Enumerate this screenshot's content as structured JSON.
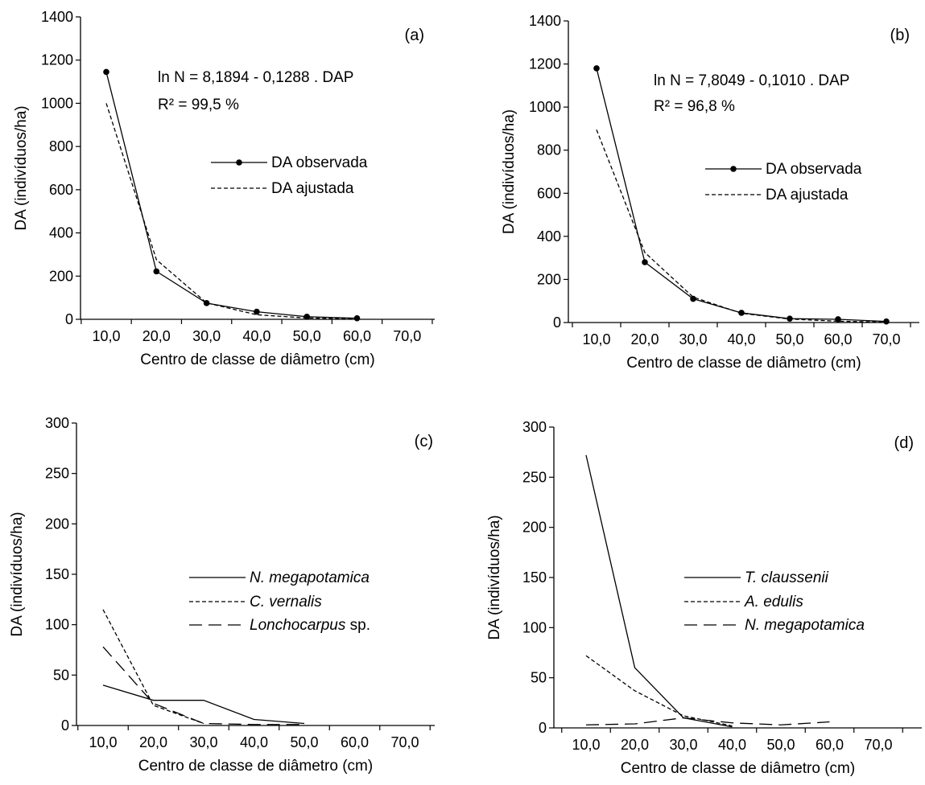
{
  "chart_data": [
    {
      "panel": "(a)",
      "type": "line",
      "xlabel": "Centro de classe de diâmetro (cm)",
      "ylabel": "DA (indivíduos/ha)",
      "xticks": [
        "10,0",
        "20,0",
        "30,0",
        "40,0",
        "50,0",
        "60,0",
        "70,0"
      ],
      "yticks": [
        "0",
        "200",
        "400",
        "600",
        "800",
        "1000",
        "1200",
        "1400"
      ],
      "ylim": [
        0,
        1400
      ],
      "annotations": [
        "ln N = 8,1894 - 0,1288 . DAP",
        "R² = 99,5 %"
      ],
      "legend": {
        "position": "center-right"
      },
      "series": [
        {
          "name": "DA observada",
          "style": "solid-markers",
          "x": [
            10,
            20,
            30,
            40,
            50,
            60
          ],
          "y": [
            1145,
            222,
            75,
            35,
            12,
            5
          ]
        },
        {
          "name": "DA ajustada",
          "style": "dashed",
          "x": [
            10,
            20,
            30,
            40,
            50,
            60
          ],
          "y": [
            1000,
            276,
            76,
            21,
            6,
            2
          ]
        }
      ]
    },
    {
      "panel": "(b)",
      "type": "line",
      "xlabel": "Centro de classe de diâmetro (cm)",
      "ylabel": "DA (indivíduos/ha)",
      "xticks": [
        "10,0",
        "20,0",
        "30,0",
        "40,0",
        "50,0",
        "60,0",
        "70,0"
      ],
      "yticks": [
        "0",
        "200",
        "400",
        "600",
        "800",
        "1000",
        "1200",
        "1400"
      ],
      "ylim": [
        0,
        1400
      ],
      "annotations": [
        "ln N = 7,8049 - 0,1010 . DAP",
        "R² = 96,8 %"
      ],
      "legend": {
        "position": "center-right"
      },
      "series": [
        {
          "name": "DA observada",
          "style": "solid-markers",
          "x": [
            10,
            20,
            30,
            40,
            50,
            60,
            70
          ],
          "y": [
            1180,
            280,
            110,
            45,
            18,
            15,
            5
          ]
        },
        {
          "name": "DA ajustada",
          "style": "dashed",
          "x": [
            10,
            20,
            30,
            40,
            50,
            60,
            70
          ],
          "y": [
            895,
            325,
            118,
            43,
            16,
            6,
            2
          ]
        }
      ]
    },
    {
      "panel": "(c)",
      "type": "line",
      "xlabel": "Centro de classe de diâmetro (cm)",
      "ylabel": "DA (indivíduos/ha)",
      "xticks": [
        "10,0",
        "20,0",
        "30,0",
        "40,0",
        "50,0",
        "60,0",
        "70,0"
      ],
      "yticks": [
        "0",
        "50",
        "100",
        "150",
        "200",
        "250",
        "300"
      ],
      "ylim": [
        0,
        300
      ],
      "legend": {
        "position": "center-right"
      },
      "series": [
        {
          "name": "N. megapotamica",
          "name_suffix": "",
          "style": "solid",
          "x": [
            10,
            20,
            30,
            40,
            50
          ],
          "y": [
            40,
            25,
            25,
            6,
            2
          ]
        },
        {
          "name": "C. vernalis",
          "name_suffix": "",
          "style": "dashed",
          "x": [
            10,
            20,
            30
          ],
          "y": [
            115,
            20,
            2
          ]
        },
        {
          "name": "Lonchocarpus",
          "name_suffix": " sp.",
          "style": "longdash",
          "x": [
            10,
            20,
            30,
            40,
            50
          ],
          "y": [
            78,
            22,
            2,
            1,
            1
          ]
        }
      ]
    },
    {
      "panel": "(d)",
      "type": "line",
      "xlabel": "Centro de classe de diâmetro (cm)",
      "ylabel": "DA (indivíduos/ha)",
      "xticks": [
        "10,0",
        "20,0",
        "30,0",
        "40,0",
        "50,0",
        "60,0",
        "70,0"
      ],
      "yticks": [
        "0",
        "50",
        "100",
        "150",
        "200",
        "250",
        "300"
      ],
      "ylim": [
        0,
        300
      ],
      "legend": {
        "position": "center-right"
      },
      "series": [
        {
          "name": "T. claussenii",
          "name_suffix": "",
          "style": "solid",
          "x": [
            10,
            20,
            30,
            40
          ],
          "y": [
            272,
            60,
            10,
            1
          ]
        },
        {
          "name": "A. edulis",
          "name_suffix": "",
          "style": "dashed",
          "x": [
            10,
            20,
            30,
            40
          ],
          "y": [
            72,
            37,
            12,
            2
          ]
        },
        {
          "name": "N. megapotamica",
          "name_suffix": "",
          "style": "longdash",
          "x": [
            10,
            20,
            30,
            40,
            50,
            60
          ],
          "y": [
            3,
            4,
            10,
            5,
            3,
            6
          ]
        }
      ]
    }
  ]
}
